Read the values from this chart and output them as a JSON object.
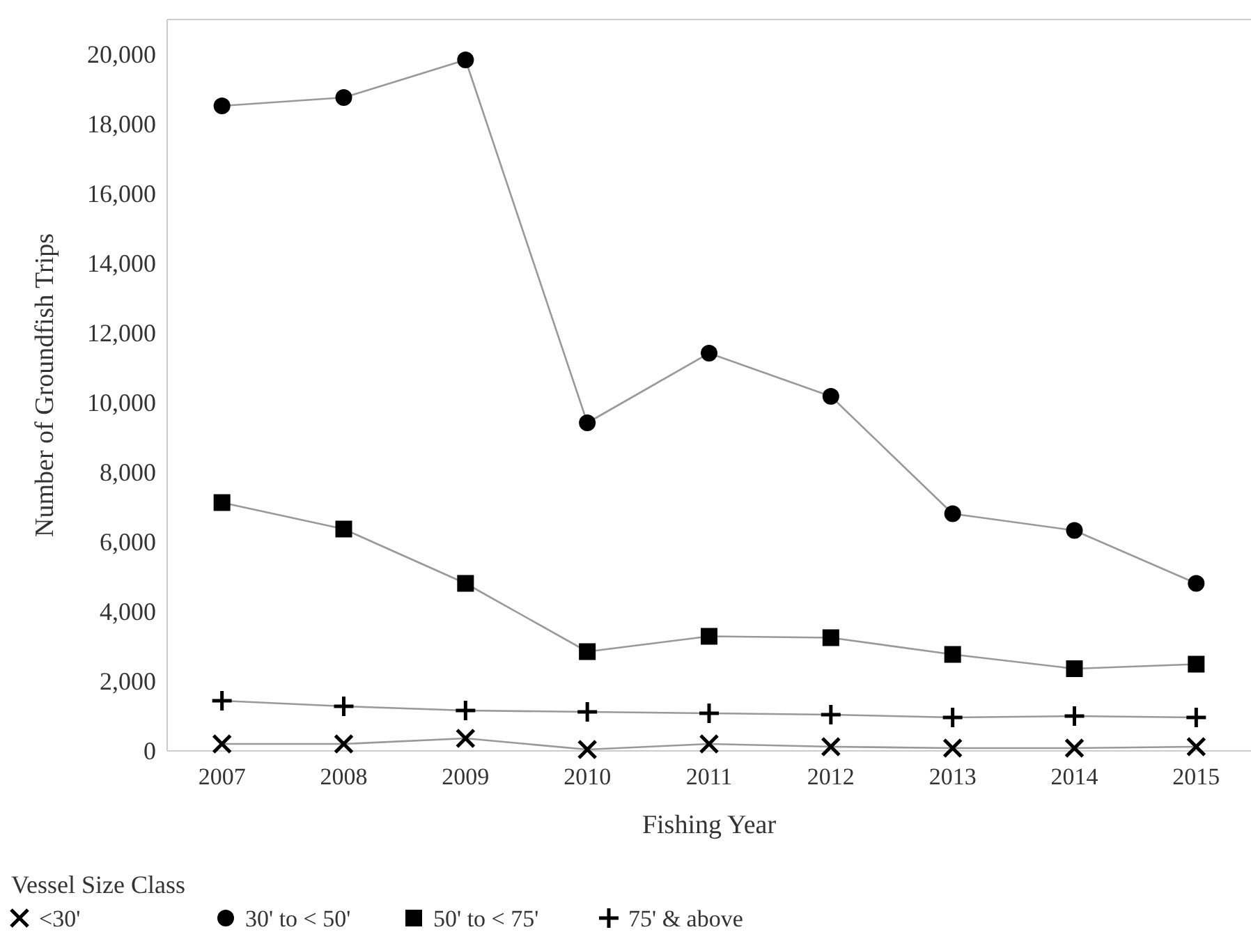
{
  "chart_data": {
    "type": "line",
    "xlabel": "Fishing Year",
    "ylabel": "Number of Groundfish Trips",
    "legend_title": "Vessel Size Class",
    "legend": "bottom left",
    "grid": false,
    "categories": [
      "2007",
      "2008",
      "2009",
      "2010",
      "2011",
      "2012",
      "2013",
      "2014",
      "2015"
    ],
    "ylim": [
      0,
      21000
    ],
    "yticks": [
      {
        "value": 0,
        "label": "0"
      },
      {
        "value": 2000,
        "label": "2,000"
      },
      {
        "value": 4000,
        "label": "4,000"
      },
      {
        "value": 6000,
        "label": "6,000"
      },
      {
        "value": 8000,
        "label": "8,000"
      },
      {
        "value": 10000,
        "label": "10,000"
      },
      {
        "value": 12000,
        "label": "12,000"
      },
      {
        "value": 14000,
        "label": "14,000"
      },
      {
        "value": 16000,
        "label": "16,000"
      },
      {
        "value": 18000,
        "label": "18,000"
      },
      {
        "value": 20000,
        "label": "20,000"
      }
    ],
    "series": [
      {
        "name": "<30'",
        "color": "#000000",
        "marker": "cross",
        "values": [
          200,
          200,
          360,
          40,
          200,
          120,
          80,
          80,
          120
        ]
      },
      {
        "name": "30' to < 50'",
        "color": "#000000",
        "marker": "circle",
        "values": [
          18520,
          18760,
          19840,
          9420,
          11420,
          10180,
          6810,
          6330,
          4810
        ]
      },
      {
        "name": "50' to < 75'",
        "color": "#000000",
        "marker": "square",
        "values": [
          7130,
          6370,
          4810,
          2850,
          3290,
          3250,
          2770,
          2360,
          2490
        ]
      },
      {
        "name": "75' & above",
        "color": "#000000",
        "marker": "plus",
        "values": [
          1440,
          1280,
          1160,
          1120,
          1080,
          1040,
          960,
          1000,
          960
        ]
      }
    ]
  }
}
